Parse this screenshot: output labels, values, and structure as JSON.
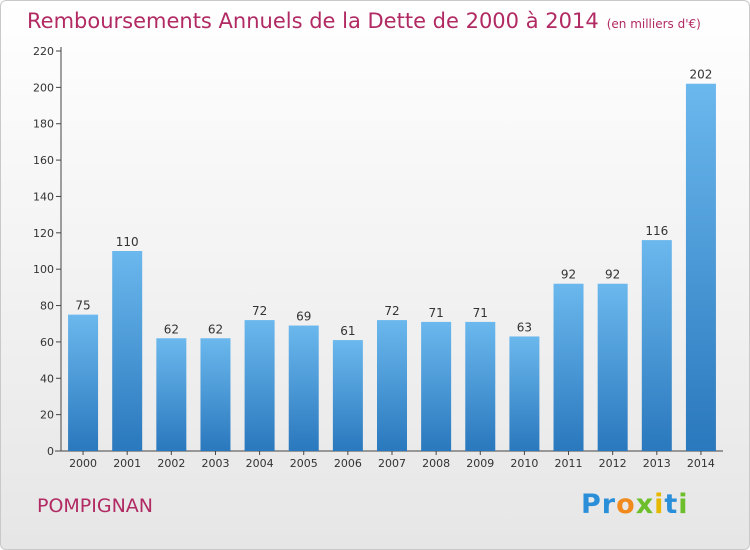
{
  "header": {
    "title": "Remboursements Annuels de la Dette de 2000 à 2014",
    "unit": "(en milliers d'€)"
  },
  "footer": {
    "city": "POMPIGNAN",
    "logo_letters": [
      {
        "char": "P",
        "color": "#2a8fd8"
      },
      {
        "char": "r",
        "color": "#2a8fd8"
      },
      {
        "char": "o",
        "color": "#f08a1c"
      },
      {
        "char": "x",
        "color": "#6cbf2a"
      },
      {
        "char": "i",
        "color": "#e6b800"
      },
      {
        "char": "t",
        "color": "#2a8fd8"
      },
      {
        "char": "i",
        "color": "#6cbf2a"
      }
    ]
  },
  "chart_data": {
    "type": "bar",
    "categories": [
      "2000",
      "2001",
      "2002",
      "2003",
      "2004",
      "2005",
      "2006",
      "2007",
      "2008",
      "2009",
      "2010",
      "2011",
      "2012",
      "2013",
      "2014"
    ],
    "values": [
      75,
      110,
      62,
      62,
      72,
      69,
      61,
      72,
      71,
      71,
      63,
      92,
      92,
      116,
      202
    ],
    "ylim": [
      0,
      220
    ],
    "yticks": [
      0,
      20,
      40,
      60,
      80,
      100,
      120,
      140,
      160,
      180,
      200,
      220
    ],
    "grid": false,
    "bar_color_top": "#6bb8ee",
    "bar_color_bottom": "#2a78bd"
  }
}
